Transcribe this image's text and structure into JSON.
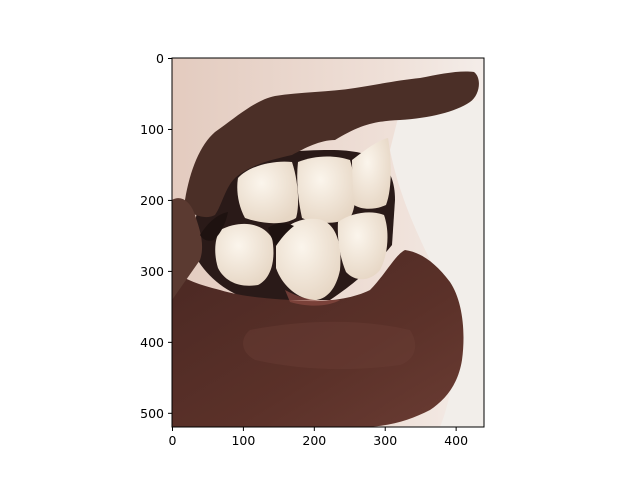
{
  "figure": {
    "description_colors": {
      "skin": "#ead6cb",
      "skin_highlight": "#f3e7e0",
      "lip_upper": "#4a2e25",
      "lip_lower": "#5a2f29",
      "mouth_dark": "#2a1a18",
      "teeth": "#f0e6d8",
      "background_right": "#f1ede8"
    },
    "x_axis": {
      "ticks": [
        "0",
        "100",
        "200",
        "300",
        "400"
      ],
      "tick_values": [
        0,
        100,
        200,
        300,
        400
      ],
      "range": [
        0,
        440
      ]
    },
    "y_axis": {
      "ticks": [
        "0",
        "100",
        "200",
        "300",
        "400",
        "500"
      ],
      "tick_values": [
        0,
        100,
        200,
        300,
        400,
        500
      ],
      "range": [
        520,
        0
      ]
    }
  }
}
